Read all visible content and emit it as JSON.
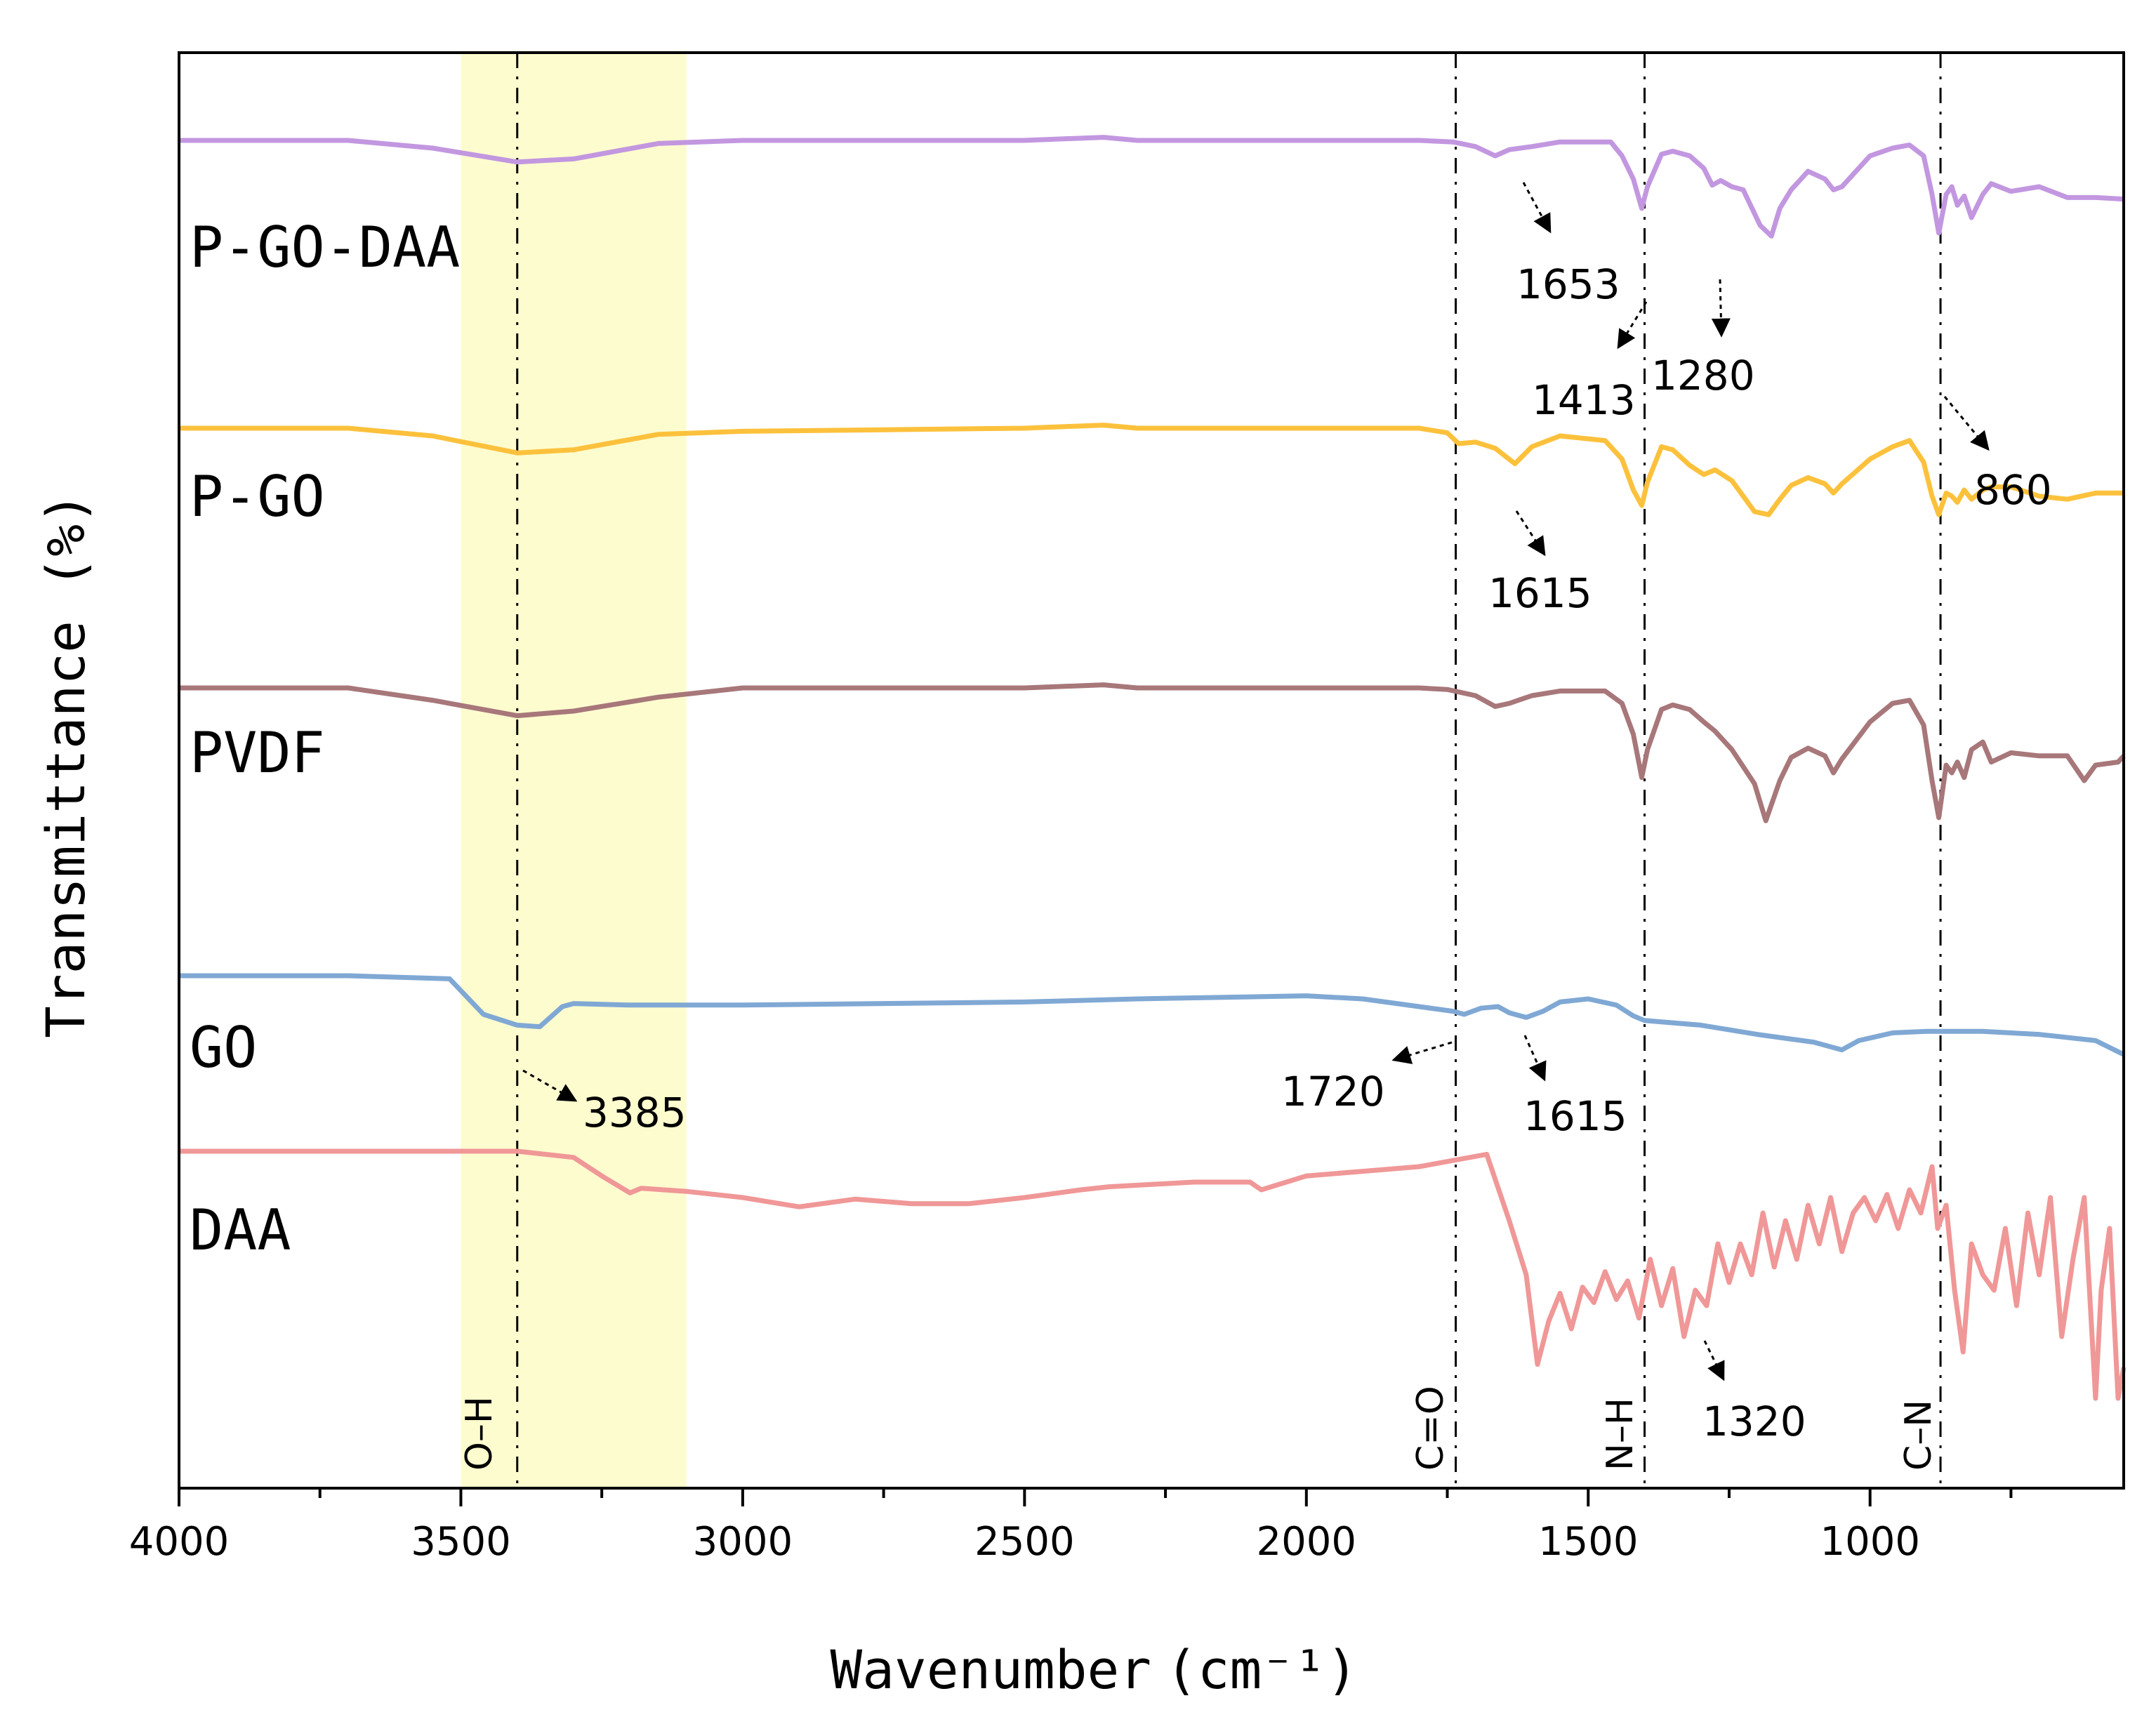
{
  "chart_data": {
    "type": "line",
    "title": "",
    "xlabel": "Wavenumber",
    "xlabel_unit": "(cm⁻¹)",
    "ylabel": "Transmittance (%)",
    "xlim": [
      4000,
      550
    ],
    "x_ticks": [
      4000,
      3500,
      3000,
      2500,
      2000,
      1500,
      1000
    ],
    "x_tick_labels": [
      "4000",
      "3500",
      "3000",
      "2500",
      "2000",
      "1500",
      "1000"
    ],
    "highlight_band": {
      "from": 3500,
      "to": 3100,
      "color": "#fdfccf"
    },
    "reference_lines": [
      {
        "x": 3400,
        "label": "O–H"
      },
      {
        "x": 1735,
        "label": "C=O"
      },
      {
        "x": 1400,
        "label": "N–H"
      },
      {
        "x": 875,
        "label": "C–N"
      }
    ],
    "series": [
      {
        "name": "P-GO-DAA",
        "color": "#c297e0",
        "offset": 100,
        "points": [
          [
            4000,
            0
          ],
          [
            3700,
            0
          ],
          [
            3550,
            5
          ],
          [
            3400,
            14
          ],
          [
            3300,
            12
          ],
          [
            3150,
            2
          ],
          [
            3000,
            0
          ],
          [
            2500,
            0
          ],
          [
            2360,
            -2
          ],
          [
            2300,
            0
          ],
          [
            1800,
            0
          ],
          [
            1740,
            1
          ],
          [
            1700,
            4
          ],
          [
            1665,
            10
          ],
          [
            1640,
            6
          ],
          [
            1600,
            4
          ],
          [
            1550,
            1
          ],
          [
            1460,
            1
          ],
          [
            1440,
            10
          ],
          [
            1420,
            25
          ],
          [
            1405,
            44
          ],
          [
            1395,
            30
          ],
          [
            1370,
            9
          ],
          [
            1350,
            7
          ],
          [
            1320,
            10
          ],
          [
            1295,
            18
          ],
          [
            1280,
            29
          ],
          [
            1265,
            26
          ],
          [
            1245,
            30
          ],
          [
            1225,
            32
          ],
          [
            1195,
            55
          ],
          [
            1175,
            62
          ],
          [
            1160,
            44
          ],
          [
            1140,
            32
          ],
          [
            1110,
            20
          ],
          [
            1080,
            25
          ],
          [
            1065,
            32
          ],
          [
            1050,
            30
          ],
          [
            1000,
            10
          ],
          [
            960,
            5
          ],
          [
            930,
            3
          ],
          [
            905,
            10
          ],
          [
            890,
            35
          ],
          [
            878,
            60
          ],
          [
            865,
            35
          ],
          [
            855,
            30
          ],
          [
            845,
            42
          ],
          [
            833,
            36
          ],
          [
            820,
            50
          ],
          [
            800,
            35
          ],
          [
            785,
            28
          ],
          [
            750,
            33
          ],
          [
            700,
            30
          ],
          [
            650,
            37
          ],
          [
            600,
            37
          ],
          [
            550,
            38
          ]
        ]
      },
      {
        "name": "P-GO",
        "color": "#fcc13c",
        "offset": 0,
        "points": [
          [
            4000,
            0
          ],
          [
            3700,
            0
          ],
          [
            3550,
            5
          ],
          [
            3400,
            16
          ],
          [
            3300,
            14
          ],
          [
            3150,
            4
          ],
          [
            3000,
            2
          ],
          [
            2500,
            0
          ],
          [
            2360,
            -2
          ],
          [
            2300,
            0
          ],
          [
            1800,
            0
          ],
          [
            1750,
            3
          ],
          [
            1730,
            10
          ],
          [
            1700,
            9
          ],
          [
            1665,
            13
          ],
          [
            1630,
            23
          ],
          [
            1600,
            12
          ],
          [
            1550,
            5
          ],
          [
            1470,
            8
          ],
          [
            1440,
            20
          ],
          [
            1420,
            40
          ],
          [
            1405,
            50
          ],
          [
            1395,
            35
          ],
          [
            1370,
            12
          ],
          [
            1350,
            14
          ],
          [
            1320,
            24
          ],
          [
            1295,
            30
          ],
          [
            1275,
            27
          ],
          [
            1245,
            34
          ],
          [
            1205,
            54
          ],
          [
            1180,
            56
          ],
          [
            1160,
            46
          ],
          [
            1140,
            37
          ],
          [
            1110,
            32
          ],
          [
            1080,
            36
          ],
          [
            1065,
            42
          ],
          [
            1050,
            36
          ],
          [
            1000,
            20
          ],
          [
            960,
            12
          ],
          [
            930,
            8
          ],
          [
            905,
            22
          ],
          [
            890,
            44
          ],
          [
            878,
            56
          ],
          [
            865,
            42
          ],
          [
            855,
            44
          ],
          [
            845,
            48
          ],
          [
            833,
            40
          ],
          [
            820,
            46
          ],
          [
            800,
            40
          ],
          [
            785,
            38
          ],
          [
            750,
            38
          ],
          [
            700,
            44
          ],
          [
            650,
            46
          ],
          [
            600,
            42
          ],
          [
            550,
            42
          ]
        ]
      },
      {
        "name": "PVDF",
        "color": "#a7777a",
        "offset": 0,
        "points": [
          [
            4000,
            0
          ],
          [
            3700,
            0
          ],
          [
            3550,
            8
          ],
          [
            3400,
            18
          ],
          [
            3300,
            15
          ],
          [
            3150,
            6
          ],
          [
            3000,
            0
          ],
          [
            2500,
            0
          ],
          [
            2360,
            -2
          ],
          [
            2300,
            0
          ],
          [
            1800,
            0
          ],
          [
            1750,
            1
          ],
          [
            1700,
            5
          ],
          [
            1665,
            12
          ],
          [
            1640,
            10
          ],
          [
            1600,
            5
          ],
          [
            1550,
            2
          ],
          [
            1470,
            2
          ],
          [
            1440,
            10
          ],
          [
            1420,
            30
          ],
          [
            1405,
            58
          ],
          [
            1395,
            40
          ],
          [
            1370,
            14
          ],
          [
            1350,
            11
          ],
          [
            1320,
            14
          ],
          [
            1295,
            22
          ],
          [
            1275,
            28
          ],
          [
            1245,
            40
          ],
          [
            1205,
            62
          ],
          [
            1185,
            86
          ],
          [
            1160,
            60
          ],
          [
            1140,
            45
          ],
          [
            1110,
            39
          ],
          [
            1080,
            44
          ],
          [
            1065,
            55
          ],
          [
            1050,
            46
          ],
          [
            1000,
            22
          ],
          [
            960,
            10
          ],
          [
            930,
            8
          ],
          [
            905,
            24
          ],
          [
            890,
            60
          ],
          [
            878,
            84
          ],
          [
            865,
            50
          ],
          [
            855,
            55
          ],
          [
            845,
            48
          ],
          [
            833,
            58
          ],
          [
            820,
            40
          ],
          [
            800,
            35
          ],
          [
            785,
            48
          ],
          [
            750,
            42
          ],
          [
            700,
            44
          ],
          [
            650,
            44
          ],
          [
            620,
            60
          ],
          [
            600,
            50
          ],
          [
            560,
            48
          ],
          [
            550,
            44
          ]
        ]
      },
      {
        "name": "GO",
        "color": "#80a8d4",
        "offset": 0,
        "points": [
          [
            4000,
            0
          ],
          [
            3700,
            0
          ],
          [
            3520,
            2
          ],
          [
            3460,
            25
          ],
          [
            3400,
            32
          ],
          [
            3360,
            33
          ],
          [
            3320,
            20
          ],
          [
            3300,
            18
          ],
          [
            3200,
            19
          ],
          [
            3000,
            19
          ],
          [
            2500,
            17
          ],
          [
            2300,
            15
          ],
          [
            2000,
            13
          ],
          [
            1900,
            15
          ],
          [
            1800,
            20
          ],
          [
            1740,
            23
          ],
          [
            1720,
            25
          ],
          [
            1690,
            21
          ],
          [
            1660,
            20
          ],
          [
            1640,
            24
          ],
          [
            1610,
            27
          ],
          [
            1580,
            23
          ],
          [
            1550,
            17
          ],
          [
            1500,
            15
          ],
          [
            1450,
            19
          ],
          [
            1420,
            26
          ],
          [
            1400,
            29
          ],
          [
            1300,
            32
          ],
          [
            1200,
            38
          ],
          [
            1100,
            43
          ],
          [
            1050,
            48
          ],
          [
            1020,
            42
          ],
          [
            960,
            37
          ],
          [
            900,
            36
          ],
          [
            800,
            36
          ],
          [
            700,
            38
          ],
          [
            600,
            42
          ],
          [
            550,
            51
          ]
        ]
      },
      {
        "name": "DAA",
        "color": "#f09797",
        "offset": 0,
        "points": [
          [
            4000,
            0
          ],
          [
            3400,
            0
          ],
          [
            3300,
            4
          ],
          [
            3250,
            16
          ],
          [
            3200,
            27
          ],
          [
            3180,
            24
          ],
          [
            3100,
            26
          ],
          [
            3000,
            30
          ],
          [
            2900,
            36
          ],
          [
            2800,
            31
          ],
          [
            2700,
            34
          ],
          [
            2600,
            34
          ],
          [
            2500,
            30
          ],
          [
            2400,
            25
          ],
          [
            2350,
            23
          ],
          [
            2200,
            20
          ],
          [
            2100,
            20
          ],
          [
            2080,
            25
          ],
          [
            2000,
            16
          ],
          [
            1900,
            13
          ],
          [
            1800,
            10
          ],
          [
            1680,
            2
          ],
          [
            1640,
            45
          ],
          [
            1610,
            80
          ],
          [
            1590,
            138
          ],
          [
            1570,
            110
          ],
          [
            1550,
            92
          ],
          [
            1530,
            115
          ],
          [
            1510,
            88
          ],
          [
            1490,
            98
          ],
          [
            1470,
            78
          ],
          [
            1450,
            96
          ],
          [
            1430,
            84
          ],
          [
            1410,
            108
          ],
          [
            1390,
            70
          ],
          [
            1370,
            100
          ],
          [
            1350,
            76
          ],
          [
            1330,
            120
          ],
          [
            1310,
            90
          ],
          [
            1290,
            100
          ],
          [
            1270,
            60
          ],
          [
            1250,
            85
          ],
          [
            1230,
            60
          ],
          [
            1210,
            80
          ],
          [
            1190,
            40
          ],
          [
            1170,
            75
          ],
          [
            1150,
            45
          ],
          [
            1130,
            70
          ],
          [
            1110,
            35
          ],
          [
            1090,
            60
          ],
          [
            1070,
            30
          ],
          [
            1050,
            65
          ],
          [
            1030,
            40
          ],
          [
            1010,
            30
          ],
          [
            990,
            45
          ],
          [
            970,
            28
          ],
          [
            950,
            50
          ],
          [
            930,
            25
          ],
          [
            910,
            40
          ],
          [
            890,
            10
          ],
          [
            880,
            50
          ],
          [
            865,
            35
          ],
          [
            850,
            90
          ],
          [
            835,
            130
          ],
          [
            820,
            60
          ],
          [
            800,
            80
          ],
          [
            780,
            90
          ],
          [
            760,
            50
          ],
          [
            740,
            100
          ],
          [
            720,
            40
          ],
          [
            700,
            80
          ],
          [
            680,
            30
          ],
          [
            660,
            120
          ],
          [
            640,
            70
          ],
          [
            620,
            30
          ],
          [
            600,
            160
          ],
          [
            590,
            90
          ],
          [
            575,
            50
          ],
          [
            560,
            160
          ],
          [
            550,
            140
          ]
        ]
      }
    ],
    "annotations": [
      {
        "series": "P-GO-DAA",
        "text": "1653"
      },
      {
        "series": "P-GO-DAA",
        "text": "1413"
      },
      {
        "series": "P-GO-DAA",
        "text": "1280"
      },
      {
        "series": "P-GO-DAA",
        "text": "860"
      },
      {
        "series": "P-GO",
        "text": "1615"
      },
      {
        "series": "GO",
        "text": "3385"
      },
      {
        "series": "GO",
        "text": "1720"
      },
      {
        "series": "GO",
        "text": "1615"
      },
      {
        "series": "DAA",
        "text": "1320"
      }
    ]
  }
}
